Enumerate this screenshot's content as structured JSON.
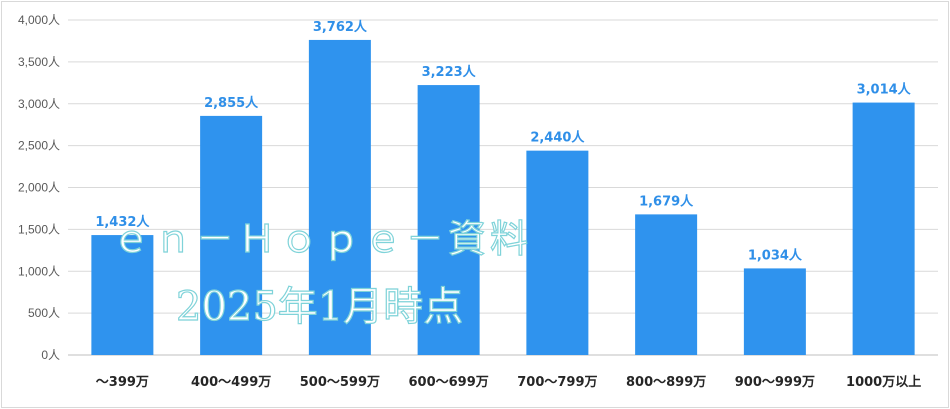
{
  "chart_data": {
    "type": "bar",
    "categories": [
      "～399万",
      "400～499万",
      "500～599万",
      "600～699万",
      "700～799万",
      "800～899万",
      "900～999万",
      "1000万以上"
    ],
    "values": [
      1432,
      2855,
      3762,
      3223,
      2440,
      1679,
      1034,
      3014
    ],
    "data_labels": [
      "1,432人",
      "2,855人",
      "3,762人",
      "3,223人",
      "2,440人",
      "1,679人",
      "1,034人",
      "3,014人"
    ],
    "y_ticks": [
      "0人",
      "500人",
      "1,000人",
      "1,500人",
      "2,000人",
      "2,500人",
      "3,000人",
      "3,500人",
      "4,000人"
    ],
    "ylim": [
      0,
      4000
    ],
    "y_step": 500,
    "grid": true,
    "title": "",
    "xlabel": "",
    "ylabel": "",
    "bar_color": "#2f93ee",
    "label_color": "#2f8fe8",
    "grid_color": "#d9d9d9"
  },
  "watermark": {
    "line1": "ｅｎ－Ｈｏｐｅ－資料",
    "line2": "2025年1月時点",
    "color": "#7fd3d9"
  }
}
